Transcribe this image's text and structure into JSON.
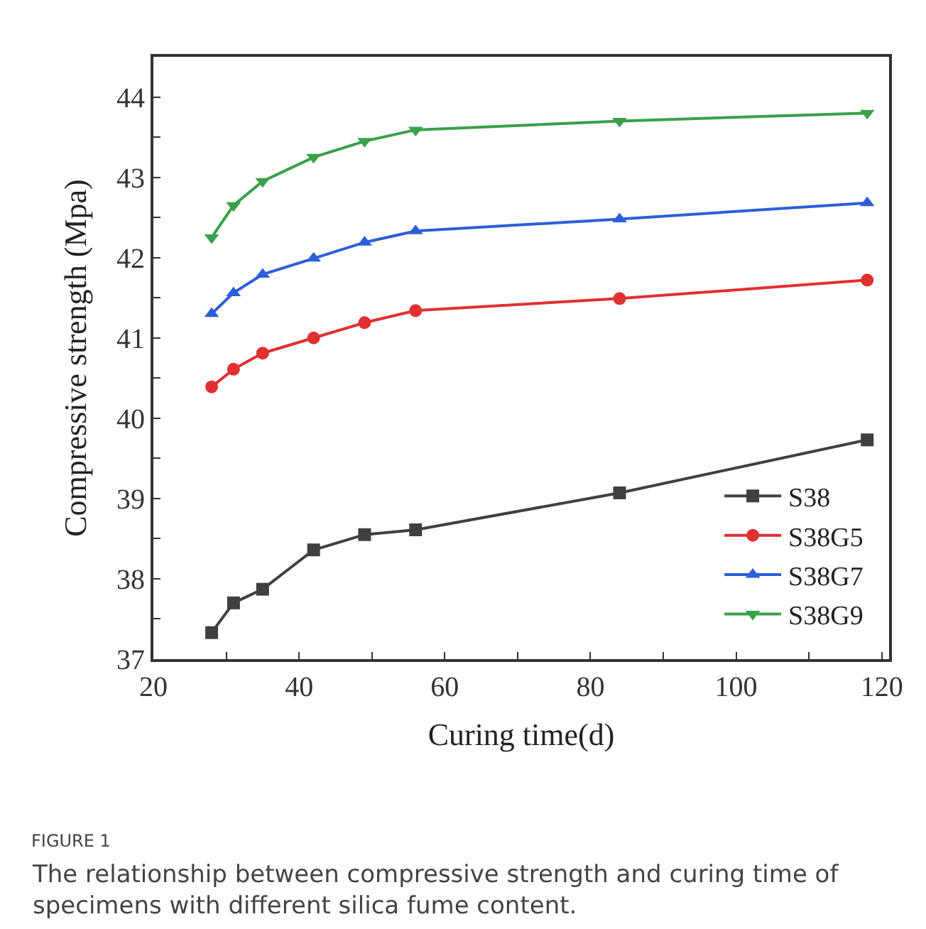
{
  "chart_data": {
    "type": "line",
    "xlabel": "Curing time(d)",
    "ylabel": "Compressive strength (Mpa)",
    "x": [
      28,
      31,
      35,
      42,
      49,
      56,
      84,
      118
    ],
    "series": [
      {
        "name": "S38",
        "color": "#404040",
        "marker": "square",
        "values": [
          37.33,
          37.7,
          37.87,
          38.36,
          38.55,
          38.61,
          39.07,
          39.73
        ]
      },
      {
        "name": "S38G5",
        "color": "#e03030",
        "marker": "circle",
        "values": [
          40.39,
          40.61,
          40.81,
          41.0,
          41.19,
          41.34,
          41.49,
          41.72
        ]
      },
      {
        "name": "S38G7",
        "color": "#2a5fd8",
        "marker": "triangle",
        "values": [
          41.3,
          41.56,
          41.79,
          41.99,
          42.19,
          42.33,
          42.48,
          42.68
        ]
      },
      {
        "name": "S38G9",
        "color": "#3aa04a",
        "marker": "triangle-down",
        "values": [
          42.25,
          42.65,
          42.95,
          43.25,
          43.45,
          43.59,
          43.7,
          43.8
        ]
      }
    ],
    "xlim": [
      20,
      121
    ],
    "ylim": [
      37,
      44.5
    ],
    "xticks": [
      20,
      {
        "value": 30,
        "label": null
      },
      40,
      {
        "value": 50,
        "label": null
      },
      60,
      {
        "value": 70,
        "label": null
      },
      80,
      {
        "value": 90,
        "label": null
      },
      100,
      {
        "value": 110,
        "label": null
      },
      120
    ],
    "yticks": [
      37,
      {
        "value": 37.5,
        "label": null
      },
      38,
      {
        "value": 38.5,
        "label": null
      },
      39,
      {
        "value": 39.5,
        "label": null
      },
      40,
      {
        "value": 40.5,
        "label": null
      },
      41,
      {
        "value": 41.5,
        "label": null
      },
      42,
      {
        "value": 42.5,
        "label": null
      },
      43,
      {
        "value": 43.5,
        "label": null
      },
      44
    ],
    "legend": "bottom right",
    "line_style": "solid",
    "annotations": [
      "FIGURE 1",
      "The relationship between compressive strength and curing time of specimens with different silica fume content."
    ]
  }
}
